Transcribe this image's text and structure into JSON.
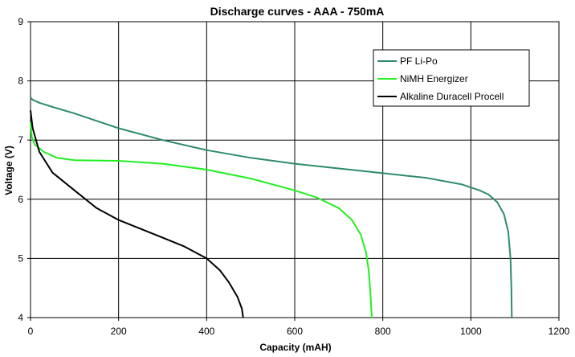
{
  "chart_data": {
    "type": "line",
    "title": "Discharge curves - AAA - 750mA",
    "xlabel": "Capacity (mAH)",
    "ylabel": "Voltage (V)",
    "xlim": [
      0,
      1200
    ],
    "ylim": [
      4,
      9
    ],
    "x_ticks": [
      "0",
      "200",
      "400",
      "600",
      "800",
      "1000",
      "1200"
    ],
    "y_ticks": [
      "4",
      "5",
      "6",
      "7",
      "8",
      "9"
    ],
    "grid": true,
    "legend_position": "top-right",
    "series": [
      {
        "name": "PF Li-Po",
        "color": "#2e8b6e",
        "points": [
          [
            0,
            7.72
          ],
          [
            5,
            7.68
          ],
          [
            20,
            7.63
          ],
          [
            50,
            7.56
          ],
          [
            100,
            7.45
          ],
          [
            200,
            7.2
          ],
          [
            300,
            7.0
          ],
          [
            400,
            6.83
          ],
          [
            500,
            6.7
          ],
          [
            600,
            6.6
          ],
          [
            700,
            6.52
          ],
          [
            800,
            6.44
          ],
          [
            900,
            6.36
          ],
          [
            980,
            6.25
          ],
          [
            1020,
            6.15
          ],
          [
            1040,
            6.08
          ],
          [
            1060,
            5.95
          ],
          [
            1075,
            5.75
          ],
          [
            1085,
            5.45
          ],
          [
            1090,
            5.0
          ],
          [
            1092,
            4.5
          ],
          [
            1093,
            4.0
          ]
        ]
      },
      {
        "name": "NiMH Energizer",
        "color": "#22ee22",
        "points": [
          [
            0,
            7.3
          ],
          [
            3,
            7.05
          ],
          [
            10,
            6.92
          ],
          [
            30,
            6.8
          ],
          [
            60,
            6.7
          ],
          [
            100,
            6.66
          ],
          [
            200,
            6.65
          ],
          [
            300,
            6.6
          ],
          [
            400,
            6.5
          ],
          [
            500,
            6.35
          ],
          [
            600,
            6.15
          ],
          [
            650,
            6.03
          ],
          [
            700,
            5.85
          ],
          [
            730,
            5.65
          ],
          [
            750,
            5.4
          ],
          [
            762,
            5.1
          ],
          [
            768,
            4.8
          ],
          [
            772,
            4.4
          ],
          [
            775,
            4.0
          ]
        ]
      },
      {
        "name": "Alkaline Duracell Procell",
        "color": "#000000",
        "points": [
          [
            0,
            7.5
          ],
          [
            5,
            7.2
          ],
          [
            20,
            6.8
          ],
          [
            50,
            6.45
          ],
          [
            100,
            6.15
          ],
          [
            150,
            5.85
          ],
          [
            200,
            5.65
          ],
          [
            250,
            5.5
          ],
          [
            300,
            5.35
          ],
          [
            350,
            5.2
          ],
          [
            400,
            5.0
          ],
          [
            430,
            4.8
          ],
          [
            450,
            4.6
          ],
          [
            470,
            4.35
          ],
          [
            480,
            4.15
          ],
          [
            483,
            4.0
          ]
        ]
      }
    ]
  }
}
